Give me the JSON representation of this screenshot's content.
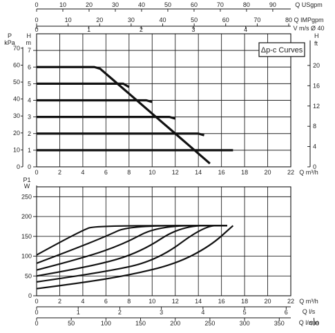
{
  "chart_data": [
    {
      "type": "line",
      "legend": "Δp-c Curves",
      "top_scales": [
        {
          "unit": "Q USgpm",
          "ticks": [
            "0",
            "10",
            "20",
            "30",
            "40",
            "50",
            "60",
            "70",
            "80",
            "90"
          ]
        },
        {
          "unit": "Q IMPgpm",
          "ticks": [
            "0",
            "10",
            "20",
            "30",
            "40",
            "50",
            "60",
            "70",
            "80"
          ]
        },
        {
          "unit": "V m/s Ø 40",
          "ticks": [
            "0",
            "1",
            "2",
            "3",
            "4"
          ]
        }
      ],
      "y_kpa": {
        "unit_top": "P",
        "unit": "kPa",
        "ticks": [
          "0",
          "10",
          "20",
          "30",
          "40",
          "50",
          "60",
          "70"
        ]
      },
      "y_m": {
        "unit_top": "H",
        "unit": "m",
        "ticks": [
          "0",
          "1",
          "2",
          "3",
          "4",
          "5",
          "6",
          "7"
        ]
      },
      "y_ft": {
        "unit_top": "H",
        "unit": "ft",
        "ticks": [
          "0",
          "4",
          "8",
          "12",
          "16",
          "20"
        ]
      },
      "x_axis": {
        "unit": "Q m³/h",
        "ticks": [
          "0",
          "2",
          "4",
          "6",
          "8",
          "10",
          "12",
          "14",
          "16",
          "18",
          "20",
          "22"
        ]
      },
      "x": [
        0,
        0.5,
        1,
        1.5,
        2,
        2.5,
        3,
        3.5,
        4,
        4.5,
        5,
        5.5,
        6,
        6.5,
        7,
        7.5,
        8,
        8.5,
        9,
        9.5,
        10,
        10.5,
        11,
        11.5,
        12,
        12.5,
        13,
        13.5,
        14,
        14.5,
        15,
        15.5,
        16,
        16.5,
        17
      ],
      "series": [
        {
          "values": [
            6,
            6,
            6,
            6,
            6,
            6,
            6,
            6,
            6,
            6,
            6,
            5.9,
            5.6,
            5.3,
            5.0,
            4.7,
            4.4,
            4.1,
            3.8,
            3.5,
            3.2,
            2.9,
            2.6,
            2.3,
            2.0,
            1.7,
            1.4,
            1.1,
            0.8,
            0.5,
            0.2,
            null,
            null,
            null,
            null
          ]
        },
        {
          "values": [
            5,
            5,
            5,
            5,
            5,
            5,
            5,
            5,
            5,
            5,
            5,
            5,
            5,
            5,
            5,
            5,
            4.8,
            null,
            null,
            null,
            null,
            null,
            null,
            null,
            null,
            null,
            null,
            null,
            null,
            null,
            null,
            null,
            null,
            null,
            null
          ]
        },
        {
          "values": [
            4,
            4,
            4,
            4,
            4,
            4,
            4,
            4,
            4,
            4,
            4,
            4,
            4,
            4,
            4,
            4,
            4,
            4,
            4,
            4,
            3.9,
            null,
            null,
            null,
            null,
            null,
            null,
            null,
            null,
            null,
            null,
            null,
            null,
            null,
            null
          ]
        },
        {
          "values": [
            3,
            3,
            3,
            3,
            3,
            3,
            3,
            3,
            3,
            3,
            3,
            3,
            3,
            3,
            3,
            3,
            3,
            3,
            3,
            3,
            3,
            3,
            3,
            3,
            2.9,
            null,
            null,
            null,
            null,
            null,
            null,
            null,
            null,
            null,
            null
          ]
        },
        {
          "values": [
            2,
            2,
            2,
            2,
            2,
            2,
            2,
            2,
            2,
            2,
            2,
            2,
            2,
            2,
            2,
            2,
            2,
            2,
            2,
            2,
            2,
            2,
            2,
            2,
            2,
            2,
            2,
            2,
            2,
            1.9,
            null,
            null,
            null,
            null,
            null
          ]
        },
        {
          "values": [
            1,
            1,
            1,
            1,
            1,
            1,
            1,
            1,
            1,
            1,
            1,
            1,
            1,
            1,
            1,
            1,
            1,
            1,
            1,
            1,
            1,
            1,
            1,
            1,
            1,
            1,
            1,
            1,
            1,
            1,
            1,
            1,
            1,
            1,
            1
          ]
        }
      ],
      "xlim": [
        0,
        22
      ],
      "ylim": [
        0,
        7
      ],
      "grid": true,
      "legend_placement": "top-right"
    },
    {
      "type": "line",
      "y_axis": {
        "unit_top": "P1",
        "unit": "W",
        "ticks": [
          "0",
          "50",
          "100",
          "150",
          "200",
          "250"
        ]
      },
      "x_axis": {
        "unit": "Q m³/h",
        "ticks": [
          "0",
          "2",
          "4",
          "6",
          "8",
          "10",
          "12",
          "14",
          "16",
          "18",
          "20",
          "22"
        ]
      },
      "bottom_scales": [
        {
          "unit": "Q l/s",
          "ticks": [
            "0",
            "1",
            "2",
            "3",
            "4",
            "5",
            "6"
          ]
        },
        {
          "unit": "Q l/min",
          "ticks": [
            "0",
            "50",
            "100",
            "150",
            "200",
            "250",
            "300",
            "350",
            "400"
          ]
        }
      ],
      "series": [
        {
          "x": [
            0,
            2,
            4,
            5,
            16.5
          ],
          "y": [
            103,
            135,
            165,
            177,
            177
          ]
        },
        {
          "x": [
            0,
            3,
            6,
            8,
            16.5
          ],
          "y": [
            82,
            115,
            150,
            177,
            177
          ]
        },
        {
          "x": [
            0,
            4,
            7.5,
            10.5,
            16.5
          ],
          "y": [
            65,
            95,
            130,
            177,
            177
          ]
        },
        {
          "x": [
            0,
            5,
            9,
            12.5,
            16.5
          ],
          "y": [
            50,
            75,
            110,
            177,
            177
          ]
        },
        {
          "x": [
            0,
            6,
            10.5,
            14.5,
            16.5
          ],
          "y": [
            35,
            60,
            90,
            177,
            177
          ]
        },
        {
          "x": [
            0,
            4,
            8,
            12,
            15,
            17
          ],
          "y": [
            18,
            33,
            52,
            80,
            125,
            177
          ]
        }
      ],
      "xlim": [
        0,
        22
      ],
      "ylim": [
        0,
        275
      ],
      "grid": true
    }
  ]
}
